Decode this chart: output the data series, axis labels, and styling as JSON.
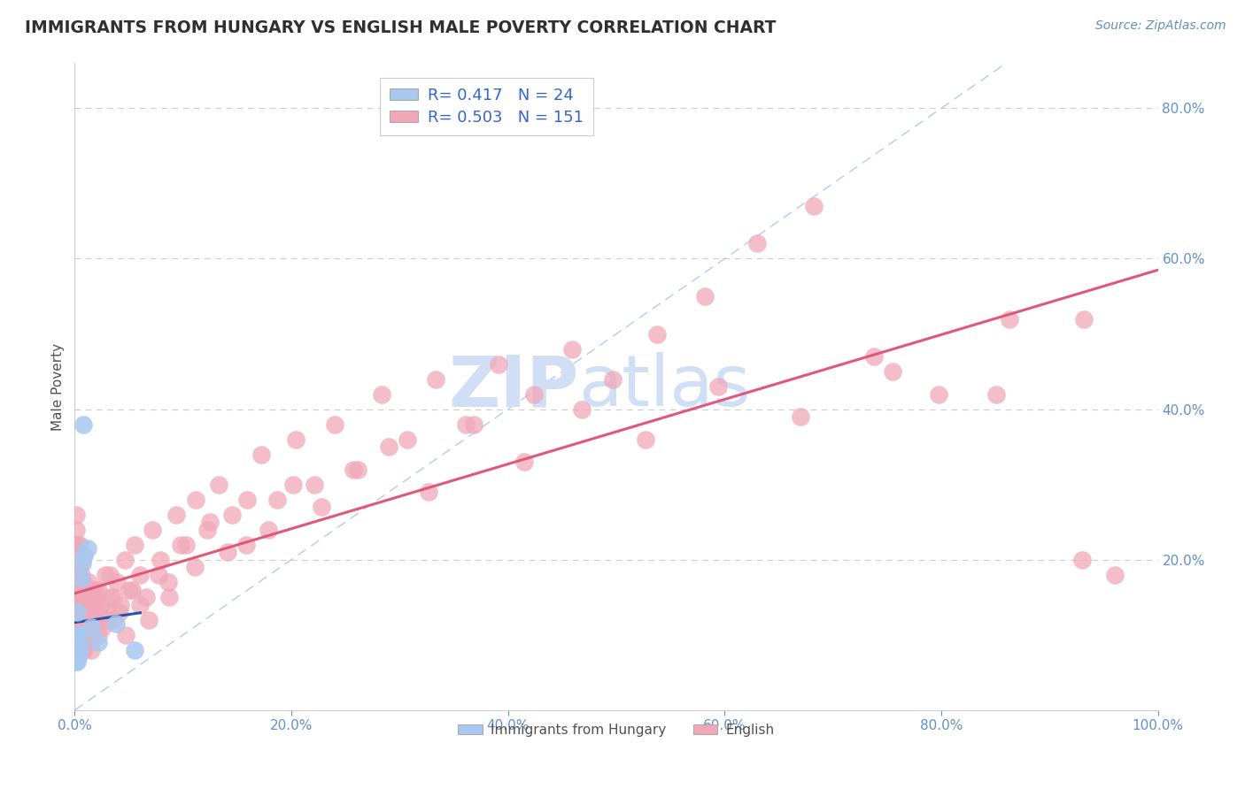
{
  "title": "IMMIGRANTS FROM HUNGARY VS ENGLISH MALE POVERTY CORRELATION CHART",
  "source": "Source: ZipAtlas.com",
  "ylabel": "Male Poverty",
  "legend_labels": [
    "Immigrants from Hungary",
    "English"
  ],
  "legend_r": [
    0.417,
    0.503
  ],
  "legend_n": [
    24,
    151
  ],
  "blue_scatter_color": "#a8c8f0",
  "pink_scatter_color": "#f0a8b8",
  "blue_line_color": "#2255aa",
  "pink_line_color": "#e05878",
  "diag_color": "#b0c4e8",
  "title_color": "#303030",
  "source_color": "#6090b8",
  "axis_label_color": "#505050",
  "tick_color": "#6090c8",
  "grid_color": "#cccccc",
  "watermark_color": "#d0dff5",
  "background_color": "#ffffff",
  "legend_text_color": "#3366cc",
  "xlim": [
    0.0,
    1.0
  ],
  "ylim": [
    0.0,
    0.86
  ],
  "yticks": [
    0.2,
    0.4,
    0.6,
    0.8
  ],
  "xticks": [
    0.0,
    0.2,
    0.4,
    0.6,
    0.8,
    1.0
  ],
  "hungary_x": [
    0.0008,
    0.001,
    0.0012,
    0.0014,
    0.0015,
    0.0016,
    0.0018,
    0.002,
    0.0022,
    0.0025,
    0.003,
    0.003,
    0.0035,
    0.004,
    0.005,
    0.006,
    0.007,
    0.008,
    0.009,
    0.012,
    0.015,
    0.022,
    0.038,
    0.055
  ],
  "hungary_y": [
    0.065,
    0.07,
    0.085,
    0.09,
    0.1,
    0.075,
    0.08,
    0.065,
    0.095,
    0.13,
    0.07,
    0.09,
    0.1,
    0.075,
    0.085,
    0.175,
    0.195,
    0.38,
    0.205,
    0.215,
    0.11,
    0.09,
    0.115,
    0.08
  ],
  "english_x": [
    0.001,
    0.001,
    0.001,
    0.001,
    0.001,
    0.002,
    0.002,
    0.002,
    0.002,
    0.002,
    0.002,
    0.002,
    0.003,
    0.003,
    0.003,
    0.003,
    0.003,
    0.003,
    0.004,
    0.004,
    0.004,
    0.004,
    0.004,
    0.005,
    0.005,
    0.005,
    0.005,
    0.006,
    0.006,
    0.006,
    0.006,
    0.007,
    0.007,
    0.007,
    0.008,
    0.008,
    0.008,
    0.009,
    0.009,
    0.01,
    0.01,
    0.011,
    0.012,
    0.013,
    0.014,
    0.015,
    0.016,
    0.017,
    0.018,
    0.019,
    0.02,
    0.022,
    0.024,
    0.026,
    0.028,
    0.03,
    0.033,
    0.036,
    0.039,
    0.042,
    0.046,
    0.05,
    0.055,
    0.06,
    0.066,
    0.072,
    0.079,
    0.086,
    0.094,
    0.103,
    0.112,
    0.122,
    0.133,
    0.145,
    0.158,
    0.172,
    0.187,
    0.204,
    0.221,
    0.24,
    0.261,
    0.283,
    0.307,
    0.333,
    0.361,
    0.391,
    0.424,
    0.459,
    0.497,
    0.538,
    0.582,
    0.63,
    0.682,
    0.738,
    0.798,
    0.863,
    0.932,
    0.001,
    0.002,
    0.002,
    0.003,
    0.003,
    0.004,
    0.004,
    0.005,
    0.005,
    0.006,
    0.006,
    0.007,
    0.007,
    0.008,
    0.009,
    0.01,
    0.011,
    0.013,
    0.015,
    0.017,
    0.019,
    0.022,
    0.025,
    0.028,
    0.032,
    0.036,
    0.041,
    0.047,
    0.053,
    0.06,
    0.068,
    0.077,
    0.087,
    0.098,
    0.111,
    0.125,
    0.141,
    0.159,
    0.179,
    0.202,
    0.228,
    0.257,
    0.29,
    0.327,
    0.368,
    0.415,
    0.468,
    0.527,
    0.594,
    0.67,
    0.755,
    0.851,
    0.93,
    0.96
  ],
  "english_y": [
    0.26,
    0.22,
    0.18,
    0.24,
    0.2,
    0.15,
    0.19,
    0.16,
    0.12,
    0.22,
    0.17,
    0.14,
    0.1,
    0.16,
    0.2,
    0.13,
    0.18,
    0.11,
    0.09,
    0.15,
    0.19,
    0.12,
    0.17,
    0.08,
    0.14,
    0.11,
    0.2,
    0.1,
    0.15,
    0.18,
    0.12,
    0.09,
    0.16,
    0.13,
    0.1,
    0.17,
    0.14,
    0.08,
    0.12,
    0.11,
    0.15,
    0.09,
    0.13,
    0.17,
    0.12,
    0.1,
    0.16,
    0.14,
    0.11,
    0.15,
    0.12,
    0.16,
    0.14,
    0.11,
    0.18,
    0.13,
    0.15,
    0.12,
    0.17,
    0.14,
    0.2,
    0.16,
    0.22,
    0.18,
    0.15,
    0.24,
    0.2,
    0.17,
    0.26,
    0.22,
    0.28,
    0.24,
    0.3,
    0.26,
    0.22,
    0.34,
    0.28,
    0.36,
    0.3,
    0.38,
    0.32,
    0.42,
    0.36,
    0.44,
    0.38,
    0.46,
    0.42,
    0.48,
    0.44,
    0.5,
    0.55,
    0.62,
    0.67,
    0.47,
    0.42,
    0.52,
    0.52,
    0.08,
    0.18,
    0.12,
    0.15,
    0.09,
    0.19,
    0.11,
    0.22,
    0.13,
    0.17,
    0.1,
    0.2,
    0.08,
    0.16,
    0.12,
    0.09,
    0.14,
    0.11,
    0.08,
    0.13,
    0.16,
    0.1,
    0.14,
    0.12,
    0.18,
    0.15,
    0.13,
    0.1,
    0.16,
    0.14,
    0.12,
    0.18,
    0.15,
    0.22,
    0.19,
    0.25,
    0.21,
    0.28,
    0.24,
    0.3,
    0.27,
    0.32,
    0.35,
    0.29,
    0.38,
    0.33,
    0.4,
    0.36,
    0.43,
    0.39,
    0.45,
    0.42,
    0.2,
    0.18
  ]
}
